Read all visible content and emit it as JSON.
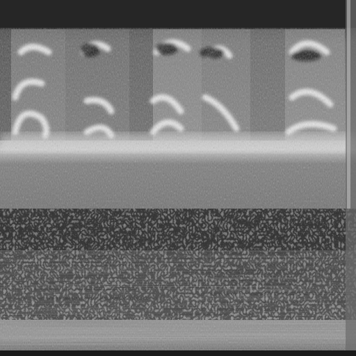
{
  "image": {
    "kind": "grayscale spectrogram-like texture",
    "palette": {
      "top_band": "#262626",
      "bright": "#f2f2f2",
      "mid": "#8a8a8a",
      "dark": "#111111",
      "noise_light": "#b8b8b8",
      "noise_dark": "#3a3a3a"
    }
  }
}
